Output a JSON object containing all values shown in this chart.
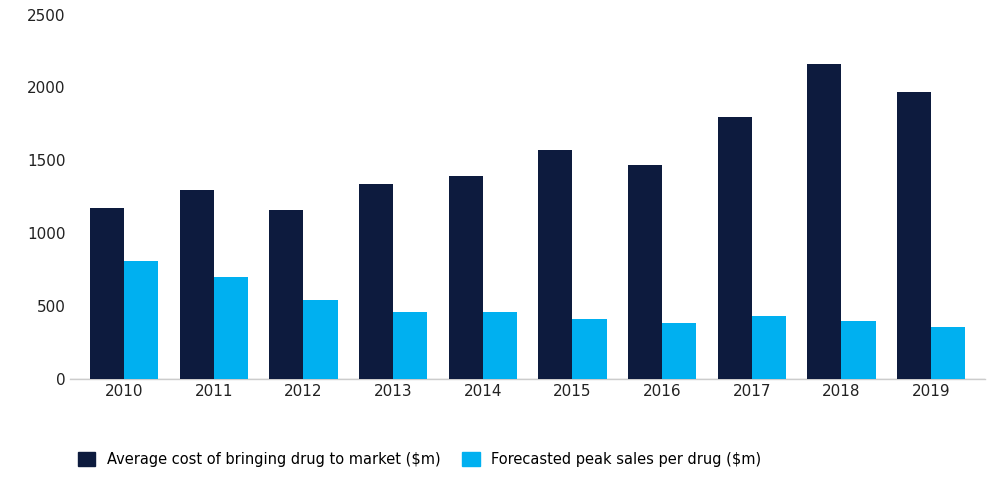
{
  "years": [
    "2010",
    "2011",
    "2012",
    "2013",
    "2014",
    "2015",
    "2016",
    "2017",
    "2018",
    "2019"
  ],
  "avg_cost": [
    1175,
    1300,
    1160,
    1340,
    1390,
    1570,
    1470,
    1800,
    2160,
    1970
  ],
  "forecasted_sales": [
    810,
    700,
    545,
    460,
    460,
    415,
    385,
    435,
    395,
    360
  ],
  "avg_cost_color": "#0d1b3e",
  "forecasted_sales_color": "#00b0f0",
  "background_color": "#ffffff",
  "ylim": [
    0,
    2500
  ],
  "yticks": [
    0,
    500,
    1000,
    1500,
    2000,
    2500
  ],
  "bar_width": 0.38,
  "legend_label_avg": "Average cost of bringing drug to market ($m)",
  "legend_label_forecast": "Forecasted peak sales per drug ($m)",
  "axis_color": "#cccccc",
  "tick_label_fontsize": 11,
  "legend_fontsize": 10.5
}
